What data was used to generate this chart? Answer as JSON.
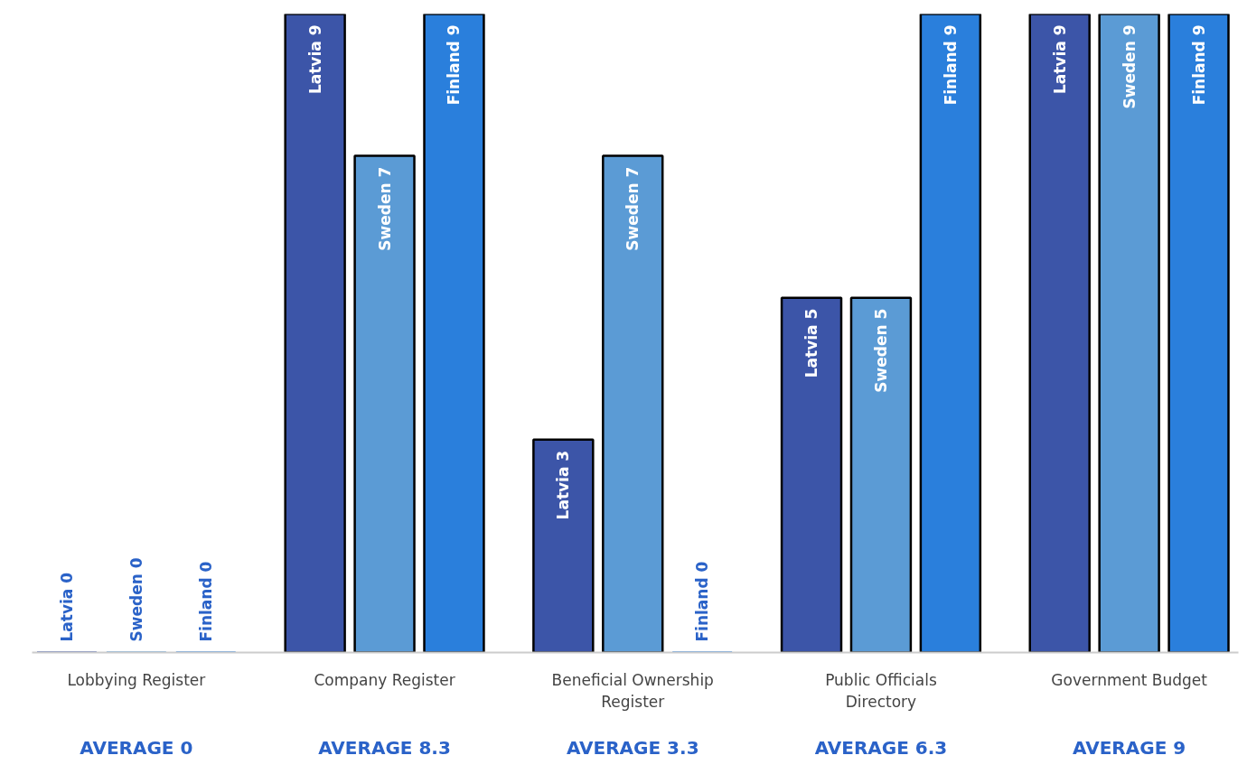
{
  "chart_data": {
    "type": "bar",
    "categories": [
      "Lobbying Register",
      "Company Register",
      "Beneficial Ownership Register",
      "Public Officials Directory",
      "Government Budget"
    ],
    "series": [
      {
        "color": "#3c55a8",
        "values": [
          0,
          9,
          3,
          5,
          9
        ],
        "value_labels": [
          "Latvia 0",
          "Latvia 9",
          "Latvia 3",
          "Latvia 5",
          "Latvia 9"
        ]
      },
      {
        "color": "#5b9bd5",
        "values": [
          0,
          7,
          7,
          5,
          9
        ],
        "value_labels": [
          "Sweden 0",
          "Sweden 7",
          "Sweden 7",
          "Sweden 5",
          "Sweden 9"
        ]
      },
      {
        "color": "#2a7fdc",
        "values": [
          0,
          9,
          0,
          9,
          9
        ],
        "value_labels": [
          "Finland 0",
          "Finland 9",
          "Finland 0",
          "Finland 9",
          "Finland 9"
        ]
      }
    ],
    "tick_labels": "x",
    "annotations": [
      "AVERAGE 0",
      "AVERAGE 8.3",
      "AVERAGE 3.3",
      "AVERAGE 6.3",
      "AVERAGE 9"
    ]
  }
}
